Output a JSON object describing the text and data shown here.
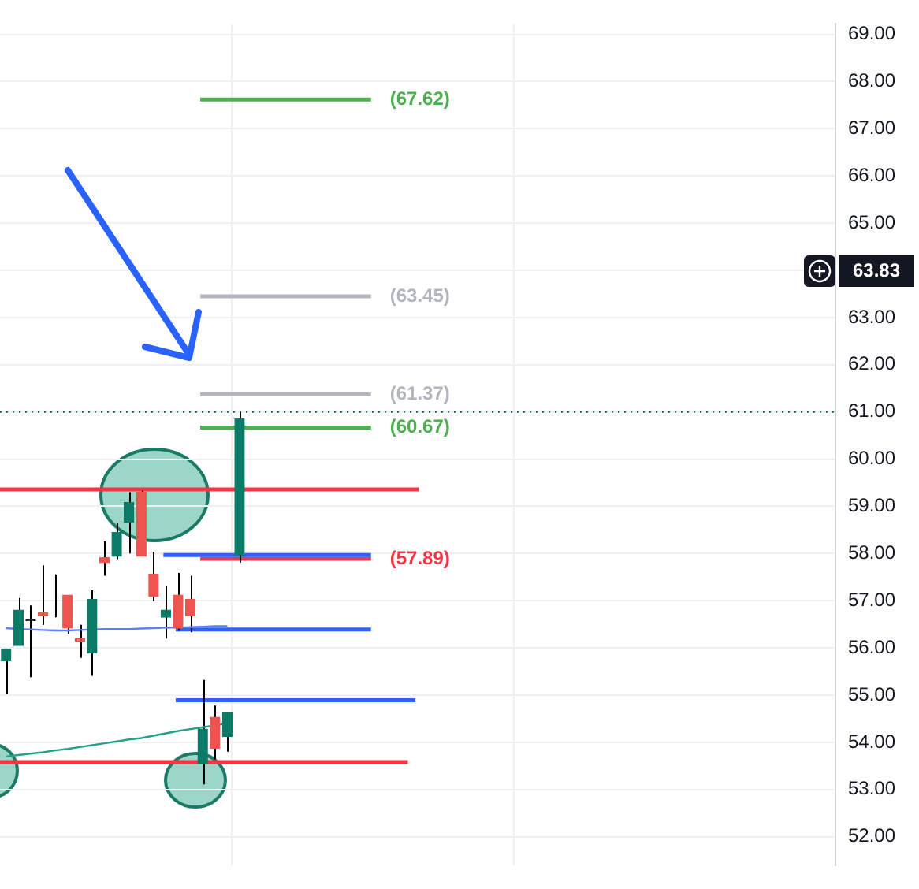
{
  "chart_data": {
    "type": "candlestick",
    "categories": [
      null,
      null,
      null,
      null,
      null,
      null,
      null,
      null,
      null,
      null,
      null,
      null,
      null,
      null,
      null,
      null,
      null,
      null,
      null,
      null,
      null,
      null,
      null,
      null,
      null,
      null,
      null,
      null,
      null,
      null,
      null,
      null,
      null,
      null,
      null,
      null,
      null,
      null,
      null,
      null,
      null,
      null,
      null,
      null,
      null,
      null,
      null,
      null,
      null,
      null,
      null,
      null,
      null,
      null,
      null,
      null,
      null,
      null,
      null,
      null,
      null,
      null,
      null,
      null,
      null,
      null,
      null,
      null
    ],
    "ohlc": [
      [
        55.73,
        55.98,
        55.03,
        55.98
      ],
      [
        56.05,
        57.06,
        56.05,
        56.8
      ],
      [
        56.6,
        56.9,
        55.38,
        56.58
      ],
      [
        56.75,
        57.75,
        56.49,
        56.68
      ],
      [
        57.03,
        57.56,
        56.65,
        57.03
      ],
      [
        57.12,
        57.12,
        56.3,
        56.42
      ],
      [
        56.2,
        56.49,
        55.79,
        56.14
      ],
      [
        55.89,
        57.22,
        55.41,
        57.03
      ],
      [
        57.91,
        58.26,
        57.53,
        57.81
      ],
      [
        57.94,
        58.64,
        57.88,
        58.45
      ],
      [
        58.67,
        59.3,
        58.0,
        59.08
      ],
      [
        59.3,
        59.33,
        57.94,
        57.94
      ],
      [
        57.56,
        58.04,
        56.99,
        57.09
      ],
      [
        56.65,
        57.31,
        56.2,
        56.8
      ],
      [
        57.12,
        57.59,
        56.36,
        56.42
      ],
      [
        57.03,
        57.53,
        56.33,
        56.68
      ],
      [
        53.55,
        55.32,
        53.11,
        54.28
      ],
      [
        54.53,
        54.78,
        53.64,
        53.87
      ],
      [
        54.12,
        54.62,
        53.8,
        54.62
      ],
      [
        57.97,
        61.0,
        57.81,
        60.85
      ],
      null,
      null,
      null,
      null,
      null,
      null,
      null,
      null,
      null,
      null,
      null,
      null,
      null,
      null,
      null,
      null,
      null,
      null,
      null,
      null,
      null,
      null,
      null,
      null,
      null,
      null,
      null,
      null,
      null,
      null,
      null,
      null,
      null,
      null,
      null,
      null,
      null,
      null,
      null,
      null,
      null,
      null,
      null,
      null,
      null,
      null,
      null,
      null
    ],
    "colors": [
      "#0b7a67",
      "#0b7a67",
      "#131722",
      "#ef5350",
      "#131722",
      "#ef5350",
      "#ef5350",
      "#0b7a67",
      "#ef5350",
      "#0b7a67",
      "#0b7a67",
      "#ef5350",
      "#ef5350",
      "#0b7a67",
      "#ef5350",
      "#ef5350",
      "#0b7a67",
      "#ef5350",
      "#0b7a67",
      "#0b7a67",
      null,
      null,
      null,
      null,
      null,
      null,
      null,
      null,
      null,
      null,
      null,
      null,
      null,
      null,
      null,
      null,
      null,
      null,
      null,
      null,
      null,
      null,
      null,
      null,
      null,
      null,
      null,
      null,
      null,
      null,
      null,
      null,
      null,
      null,
      null,
      null,
      null,
      null,
      null,
      null,
      null,
      null,
      null,
      null,
      null,
      null,
      null,
      null
    ],
    "series": [
      {
        "type": "line",
        "color": "#5b7ff5",
        "values": [
          56.42,
          56.4,
          56.39,
          56.38,
          56.37,
          56.37,
          56.38,
          56.39,
          56.4,
          56.4,
          56.4,
          56.41,
          56.42,
          56.43,
          56.43,
          56.44,
          56.45,
          56.46,
          56.46,
          null,
          null,
          null,
          null,
          null,
          null,
          null,
          null,
          null,
          null,
          null,
          null,
          null,
          null,
          null,
          null,
          null,
          null,
          null,
          null,
          null,
          null,
          null,
          null,
          null,
          null,
          null,
          null,
          null,
          null,
          null,
          null,
          null,
          null,
          null,
          null,
          null,
          null,
          null,
          null,
          null,
          null,
          null,
          null,
          null,
          null,
          null,
          null,
          null
        ]
      },
      {
        "type": "line",
        "color": "#22a387",
        "values": [
          53.7,
          53.73,
          53.76,
          53.79,
          53.83,
          53.86,
          53.9,
          53.94,
          53.98,
          54.02,
          54.06,
          54.09,
          54.14,
          54.19,
          54.24,
          54.28,
          54.32,
          54.36,
          54.4,
          null,
          null,
          null,
          null,
          null,
          null,
          null,
          null,
          null,
          null,
          null,
          null,
          null,
          null,
          null,
          null,
          null,
          null,
          null,
          null,
          null,
          null,
          null,
          null,
          null,
          null,
          null,
          null,
          null,
          null,
          null,
          null,
          null,
          null,
          null,
          null,
          null,
          null,
          null,
          null,
          null,
          null,
          null,
          null,
          null,
          null,
          null,
          null,
          null
        ]
      }
    ],
    "ref_lines": [
      {
        "axis": "y",
        "value": 67.62,
        "label": "(67.62)",
        "color": "#4caf50"
      },
      {
        "axis": "y",
        "value": 63.45,
        "label": "(63.45)",
        "color": "#b2b5be"
      },
      {
        "axis": "y",
        "value": 61.37,
        "label": "(61.37)",
        "color": "#b2b5be"
      },
      {
        "axis": "y",
        "value": 60.67,
        "label": "(60.67)",
        "color": "#4caf50"
      },
      {
        "axis": "y",
        "value": 57.89,
        "label": "(57.89)",
        "color": "#f23645"
      },
      {
        "axis": "y",
        "value": 59.36,
        "color": "#f23645"
      },
      {
        "axis": "y",
        "value": 53.58,
        "color": "#f23645"
      },
      {
        "axis": "y",
        "value": 57.97,
        "color": "#2962ff"
      },
      {
        "axis": "y",
        "value": 56.39,
        "color": "#2962ff"
      },
      {
        "axis": "y",
        "value": 54.89,
        "color": "#2962ff"
      },
      {
        "axis": "y",
        "value": 61.0,
        "color": "#0b6e5f",
        "line_style": "dotted"
      }
    ],
    "annotations": [
      "63.83"
    ],
    "ylim": [
      51.4,
      69.22
    ],
    "yticks": [
      {
        "value": 52,
        "label": "52.00"
      },
      {
        "value": 53,
        "label": "53.00"
      },
      {
        "value": 54,
        "label": "54.00"
      },
      {
        "value": 55,
        "label": "55.00"
      },
      {
        "value": 56,
        "label": "56.00"
      },
      {
        "value": 57,
        "label": "57.00"
      },
      {
        "value": 58,
        "label": "58.00"
      },
      {
        "value": 59,
        "label": "59.00"
      },
      {
        "value": 60,
        "label": "60.00"
      },
      {
        "value": 61,
        "label": "61.00"
      },
      {
        "value": 62,
        "label": "62.00"
      },
      {
        "value": 63,
        "label": "63.00"
      },
      {
        "value": 64,
        "label": null
      },
      {
        "value": 65,
        "label": "65.00"
      },
      {
        "value": 66,
        "label": "66.00"
      },
      {
        "value": 67,
        "label": "67.00"
      },
      {
        "value": 68,
        "label": "68.00"
      },
      {
        "value": 69,
        "label": "69.00"
      }
    ],
    "tick_labels": "y",
    "grid": true
  }
}
